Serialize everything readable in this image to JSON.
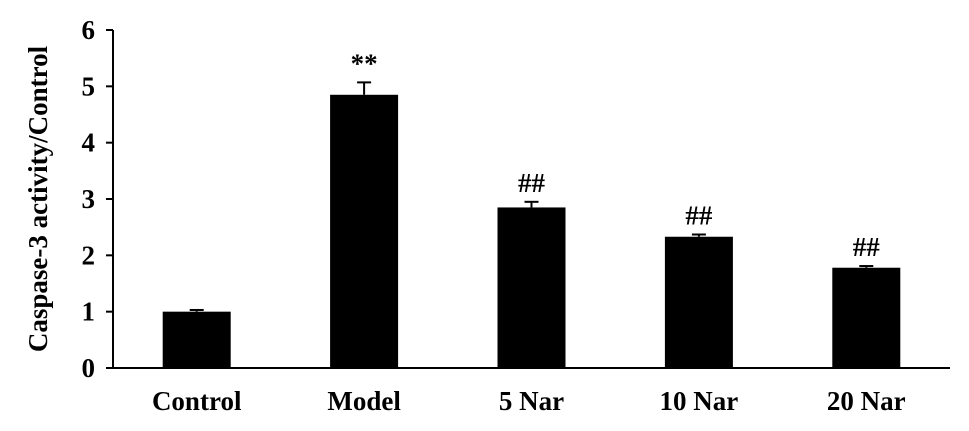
{
  "chart_data": {
    "type": "bar",
    "title": "",
    "xlabel": "",
    "ylabel": "Caspase-3 activity/Control",
    "ylim": [
      0,
      6
    ],
    "yticks": [
      0,
      1,
      2,
      3,
      4,
      5,
      6
    ],
    "grid": false,
    "legend": "none",
    "categories": [
      "Control",
      "Model",
      "5 Nar",
      "10 Nar",
      "20 Nar"
    ],
    "values": [
      1.0,
      4.85,
      2.85,
      2.33,
      1.78
    ],
    "errors": [
      0.03,
      0.22,
      0.1,
      0.04,
      0.03
    ],
    "annotations": [
      "",
      "**",
      "##",
      "##",
      "##"
    ],
    "bar_color": "#000000"
  }
}
